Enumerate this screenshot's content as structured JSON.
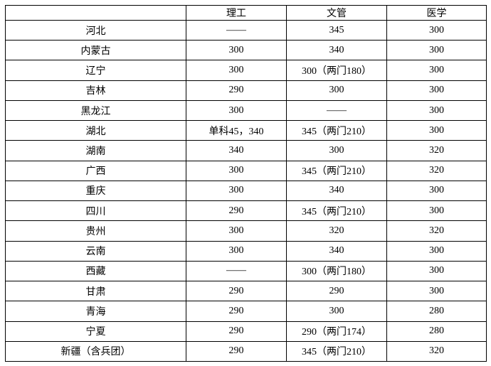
{
  "table": {
    "columns": [
      "",
      "理工",
      "文管",
      "医学"
    ],
    "rows": [
      {
        "region": "河北",
        "ligong": "——",
        "wenguan": "345",
        "yixue": "300"
      },
      {
        "region": "内蒙古",
        "ligong": "300",
        "wenguan": "340",
        "yixue": "300"
      },
      {
        "region": "辽宁",
        "ligong": "300",
        "wenguan": "300（两门180）",
        "yixue": "300"
      },
      {
        "region": "吉林",
        "ligong": "290",
        "wenguan": "300",
        "yixue": "300"
      },
      {
        "region": "黑龙江",
        "ligong": "300",
        "wenguan": "——",
        "yixue": "300"
      },
      {
        "region": "湖北",
        "ligong": "单科45，340",
        "wenguan": "345（两门210）",
        "yixue": "300"
      },
      {
        "region": "湖南",
        "ligong": "340",
        "wenguan": "300",
        "yixue": "320"
      },
      {
        "region": "广西",
        "ligong": "300",
        "wenguan": "345（两门210）",
        "yixue": "320"
      },
      {
        "region": "重庆",
        "ligong": "300",
        "wenguan": "340",
        "yixue": "300"
      },
      {
        "region": "四川",
        "ligong": "290",
        "wenguan": "345（两门210）",
        "yixue": "300"
      },
      {
        "region": "贵州",
        "ligong": "300",
        "wenguan": "320",
        "yixue": "320"
      },
      {
        "region": "云南",
        "ligong": "300",
        "wenguan": "340",
        "yixue": "300"
      },
      {
        "region": "西藏",
        "ligong": "——",
        "wenguan": "300（两门180）",
        "yixue": "300"
      },
      {
        "region": "甘肃",
        "ligong": "290",
        "wenguan": "290",
        "yixue": "300"
      },
      {
        "region": "青海",
        "ligong": "290",
        "wenguan": "300",
        "yixue": "280"
      },
      {
        "region": "宁夏",
        "ligong": "290",
        "wenguan": "290（两门174）",
        "yixue": "280"
      },
      {
        "region": "新疆（含兵团）",
        "ligong": "290",
        "wenguan": "345（两门210）",
        "yixue": "320"
      }
    ],
    "colors": {
      "border": "#000000",
      "background": "#ffffff",
      "text": "#000000"
    }
  }
}
